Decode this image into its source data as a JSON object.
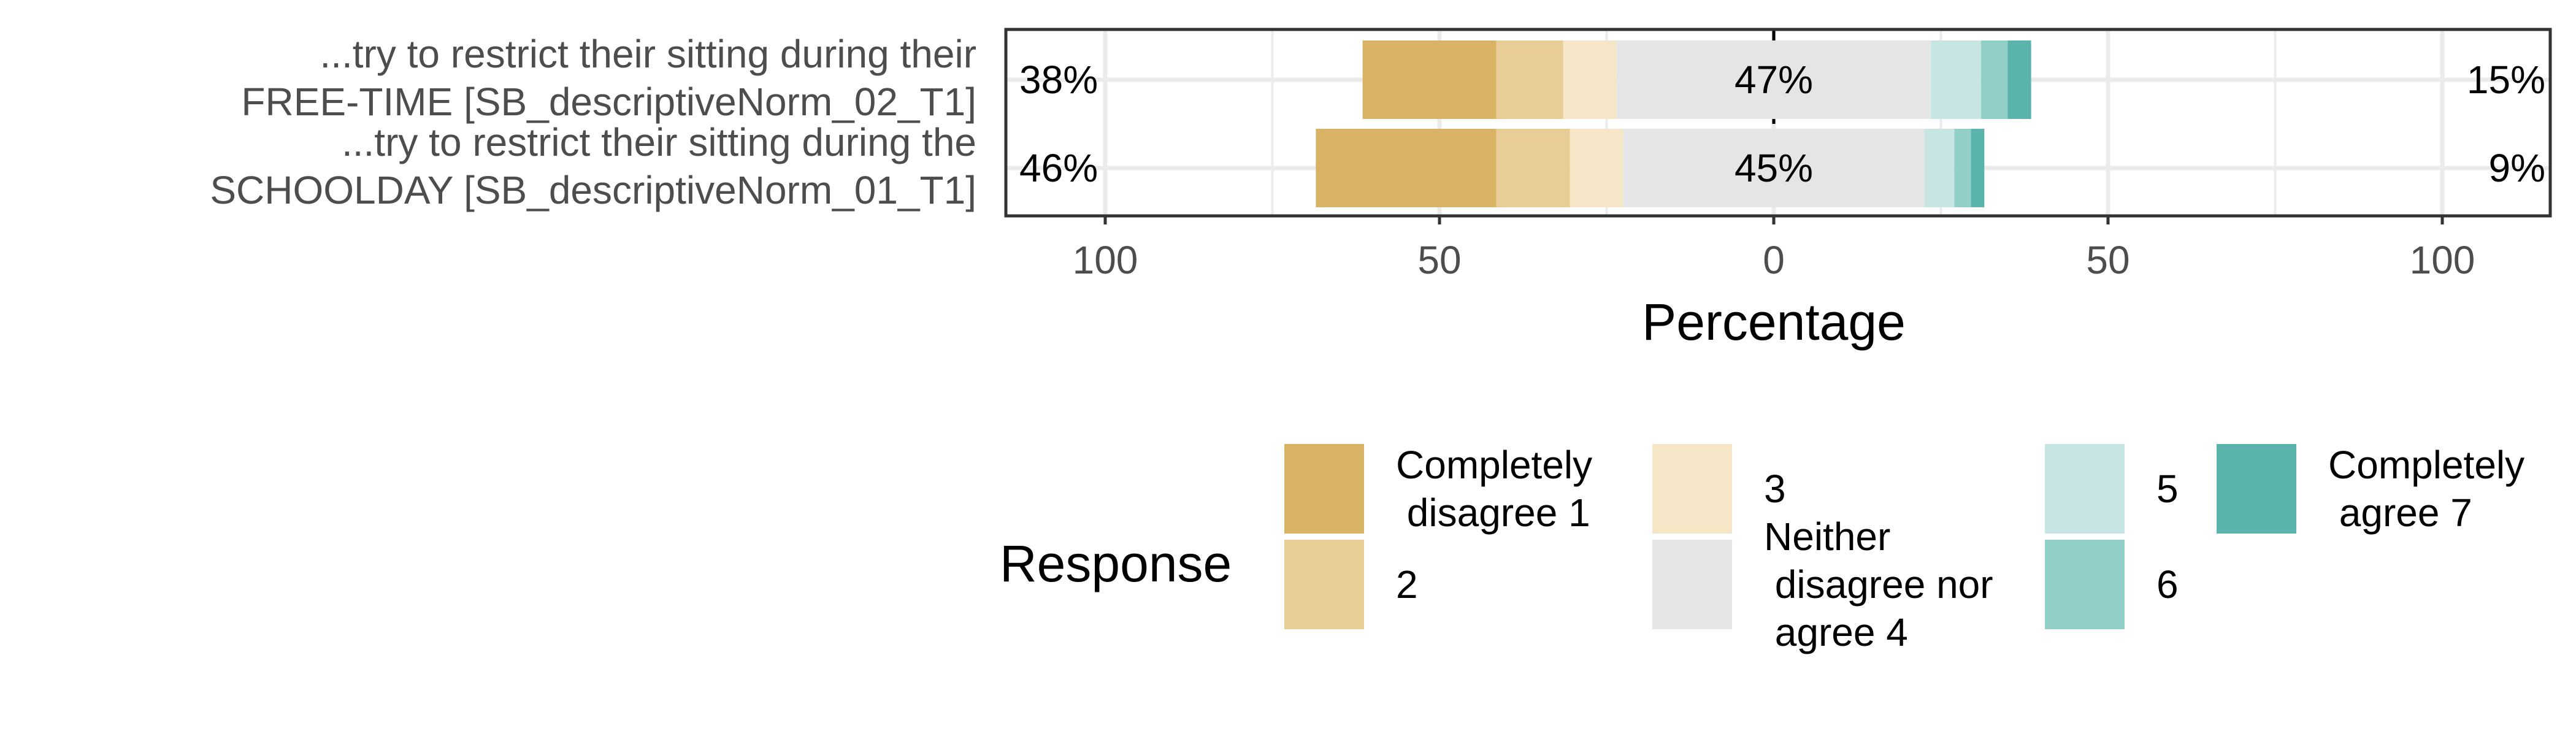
{
  "chart_data": {
    "type": "bar",
    "orientation": "horizontal",
    "stacked": "diverging",
    "xlabel": "Percentage",
    "ylabel": "",
    "xlim": [
      -100,
      100
    ],
    "xticks": [
      -100,
      -50,
      0,
      50,
      100
    ],
    "xtick_labels": [
      "100",
      "50",
      "0",
      "50",
      "100"
    ],
    "grid": true,
    "legend_title": "Response",
    "legend_position": "bottom",
    "levels": [
      {
        "label": "Completely disagree 1",
        "color": "#D8B365"
      },
      {
        "label": "2",
        "color": "#E8CD96"
      },
      {
        "label": "3",
        "color": "#F5E6C8"
      },
      {
        "label": "Neither disagree nor agree 4",
        "color": "#E5E5E5"
      },
      {
        "label": "5",
        "color": "#C7E6E3"
      },
      {
        "label": "6",
        "color": "#92CFC7"
      },
      {
        "label": "Completely agree 7",
        "color": "#5AB4AC"
      }
    ],
    "categories": [
      {
        "label_lines": [
          "...try to restrict their sitting during their",
          "FREE-TIME [SB_descriptiveNorm_02_T1]"
        ],
        "values": [
          20,
          10,
          8,
          47,
          7.5,
          4,
          3.5
        ],
        "low_label": "38%",
        "neutral_label": "47%",
        "high_label": "15%"
      },
      {
        "label_lines": [
          "...try to restrict their sitting during the",
          "SCHOOLDAY [SB_descriptiveNorm_01_T1]"
        ],
        "values": [
          27,
          11,
          8,
          45,
          4.5,
          2.5,
          2
        ],
        "low_label": "46%",
        "neutral_label": "45%",
        "high_label": "9%"
      }
    ]
  }
}
